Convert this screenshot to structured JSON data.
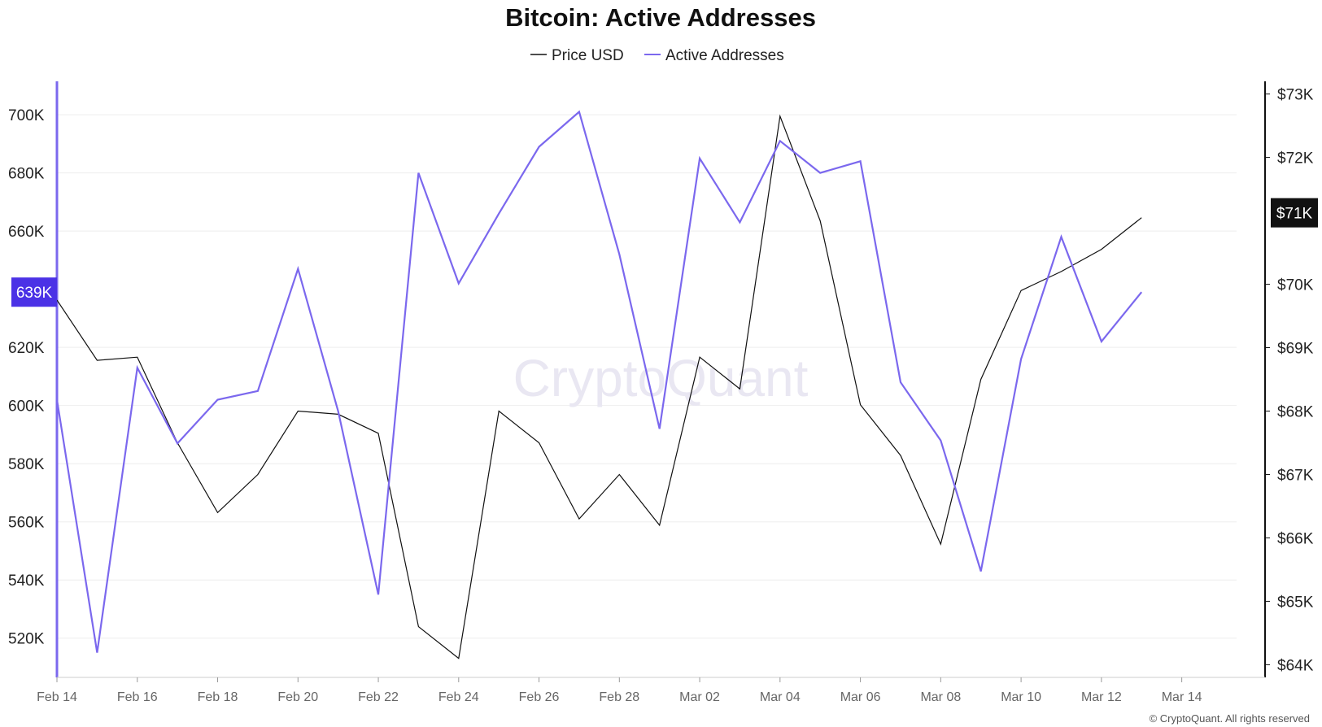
{
  "watermark": "CryptoQuant",
  "copyright": "© CryptoQuant. All rights reserved",
  "colors": {
    "price": "#111111",
    "active": "#7b68ee",
    "left_axis": "#7b68ee",
    "badge_left": "#4b32e6",
    "badge_right": "#111111"
  },
  "chart_data": {
    "type": "line",
    "title": "Bitcoin: Active Addresses",
    "x": [
      "Feb 14",
      "Feb 15",
      "Feb 16",
      "Feb 17",
      "Feb 18",
      "Feb 19",
      "Feb 20",
      "Feb 21",
      "Feb 22",
      "Feb 23",
      "Feb 24",
      "Feb 25",
      "Feb 26",
      "Feb 27",
      "Feb 28",
      "Feb 29",
      "Mar 01",
      "Mar 02",
      "Mar 03",
      "Mar 04",
      "Mar 05",
      "Mar 06",
      "Mar 07",
      "Mar 08",
      "Mar 09",
      "Mar 10",
      "Mar 11",
      "Mar 12",
      "Mar 13"
    ],
    "x_tick_labels": [
      "Feb 14",
      "Feb 16",
      "Feb 18",
      "Feb 20",
      "Feb 22",
      "Feb 24",
      "Feb 26",
      "Feb 28",
      "Mar 02",
      "Mar 04",
      "Mar 06",
      "Mar 08",
      "Mar 10",
      "Mar 12",
      "Mar 14"
    ],
    "legend_position": "top-center",
    "series": [
      {
        "name": "Price USD",
        "axis": "right",
        "values": [
          69750,
          68800,
          68850,
          67500,
          66400,
          67000,
          68000,
          67950,
          67650,
          64600,
          64100,
          68000,
          67500,
          66300,
          67000,
          66200,
          68850,
          68350,
          72650,
          71000,
          68100,
          67300,
          65900,
          68500,
          69900,
          70200,
          70550,
          71050,
          null
        ]
      },
      {
        "name": "Active Addresses",
        "axis": "left",
        "values": [
          602000,
          515000,
          613000,
          587000,
          602000,
          605000,
          647000,
          598000,
          535000,
          680000,
          642000,
          666000,
          689000,
          701000,
          652000,
          592000,
          685000,
          663000,
          691000,
          680000,
          684000,
          608000,
          588000,
          543000,
          616000,
          658000,
          622000,
          639000,
          null
        ]
      }
    ],
    "left_axis": {
      "ticks": [
        "520K",
        "540K",
        "560K",
        "580K",
        "600K",
        "620K",
        "660K",
        "680K",
        "700K"
      ],
      "tick_values": [
        520000,
        540000,
        560000,
        580000,
        600000,
        620000,
        660000,
        680000,
        700000
      ],
      "range": [
        506500,
        711500
      ]
    },
    "right_axis": {
      "ticks": [
        "$64K",
        "$65K",
        "$66K",
        "$67K",
        "$68K",
        "$69K",
        "$70K",
        "$72K",
        "$73K"
      ],
      "tick_values": [
        64000,
        65000,
        66000,
        67000,
        68000,
        69000,
        70000,
        72000,
        73000
      ],
      "range": [
        63800,
        73200
      ]
    },
    "last_value_badges": {
      "left": "639K",
      "right": "$71K"
    },
    "grid": true
  }
}
